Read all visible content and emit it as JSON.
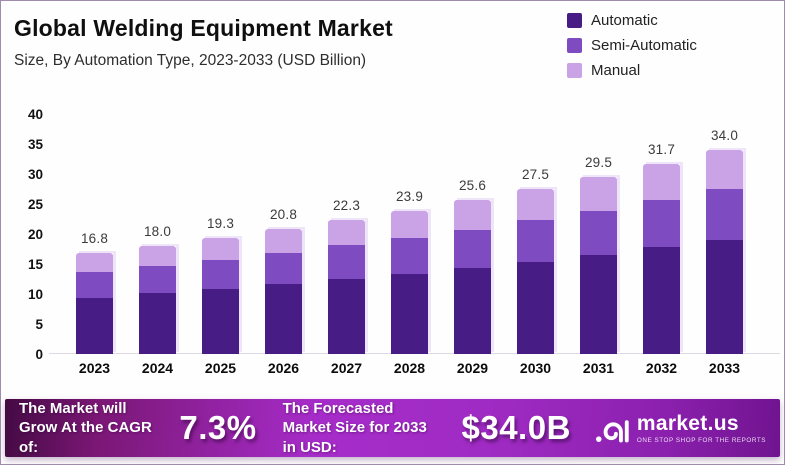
{
  "header": {
    "title": "Global Welding Equipment Market",
    "subtitle": "Size, By Automation Type, 2023-2033 (USD Billion)"
  },
  "colors": {
    "automatic": "#471c85",
    "semi_automatic": "#7e4cc0",
    "manual": "#c9a3e6",
    "banner_purple": "#a62cc9"
  },
  "chart_data": {
    "type": "bar",
    "stacked": true,
    "title": "Global Welding Equipment Market Size, By Automation Type, 2023-2033 (USD Billion)",
    "categories": [
      "2023",
      "2024",
      "2025",
      "2026",
      "2027",
      "2028",
      "2029",
      "2030",
      "2031",
      "2032",
      "2033"
    ],
    "series": [
      {
        "name": "Automatic",
        "color": "#471c85",
        "values": [
          9.4,
          10.1,
          10.8,
          11.6,
          12.5,
          13.4,
          14.3,
          15.4,
          16.5,
          17.8,
          19.0
        ]
      },
      {
        "name": "Semi-Automatic",
        "color": "#7e4cc0",
        "values": [
          4.2,
          4.5,
          4.8,
          5.2,
          5.6,
          6.0,
          6.4,
          6.9,
          7.4,
          7.9,
          8.5
        ]
      },
      {
        "name": "Manual",
        "color": "#c9a3e6",
        "values": [
          3.2,
          3.4,
          3.7,
          4.0,
          4.2,
          4.5,
          4.9,
          5.2,
          5.6,
          6.0,
          6.5
        ]
      }
    ],
    "totals": [
      16.8,
      18.0,
      19.3,
      20.8,
      22.3,
      23.9,
      25.6,
      27.5,
      29.5,
      31.7,
      34.0
    ],
    "total_labels": [
      "16.8",
      "18.0",
      "19.3",
      "20.8",
      "22.3",
      "23.9",
      "25.6",
      "27.5",
      "29.5",
      "31.7",
      "34.0"
    ],
    "xlabel": "",
    "ylabel": "",
    "ylim": [
      0,
      40
    ],
    "yticks": [
      0,
      5,
      10,
      15,
      20,
      25,
      30,
      35,
      40
    ],
    "grid": false,
    "legend_position": "top-right"
  },
  "banner": {
    "cagr_label": "The Market will Grow At the CAGR of:",
    "cagr_value": "7.3%",
    "forecast_label": "The Forecasted Market Size for 2033 in USD:",
    "forecast_value": "$34.0B",
    "logo_text": "market.us",
    "logo_tagline": "ONE STOP SHOP FOR THE REPORTS"
  }
}
